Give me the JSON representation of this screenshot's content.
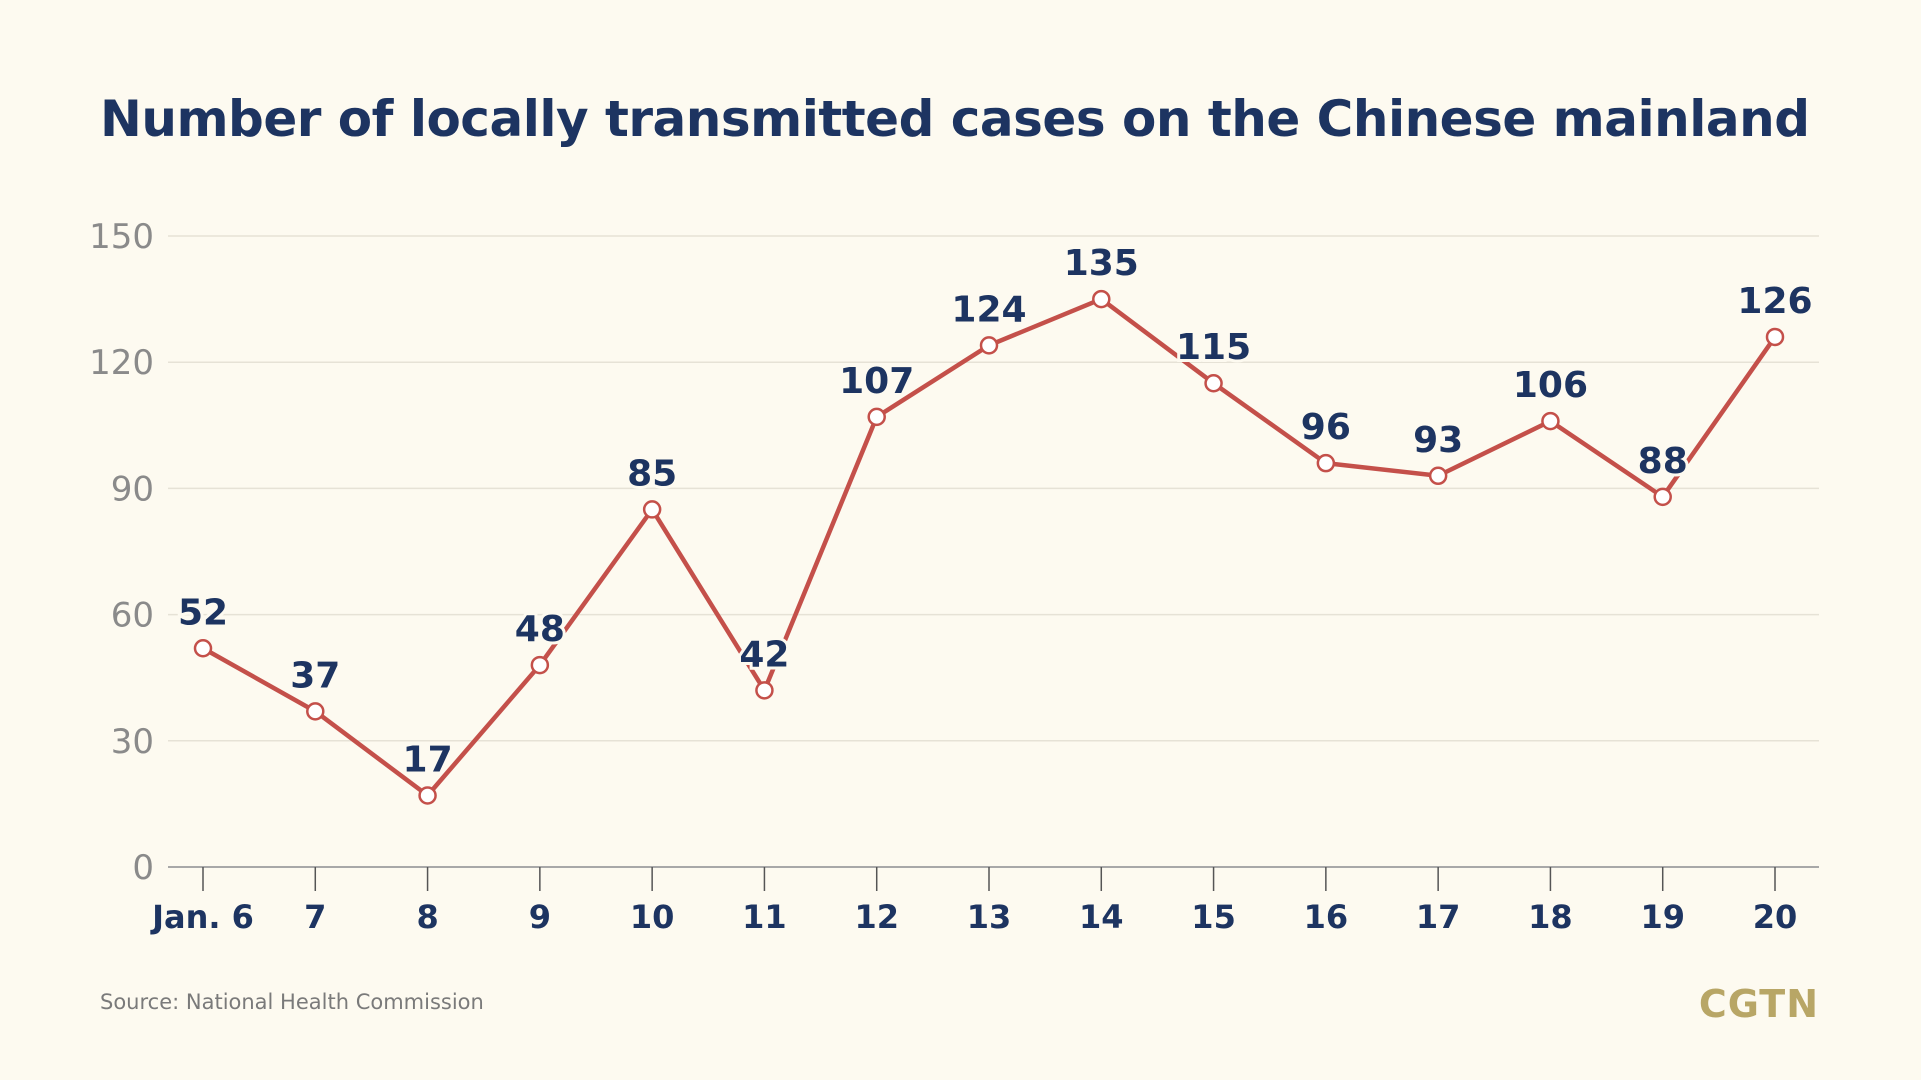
{
  "chart_data": {
    "type": "line",
    "title": "Number of locally transmitted cases on the Chinese mainland",
    "categories": [
      "Jan. 6",
      "7",
      "8",
      "9",
      "10",
      "11",
      "12",
      "13",
      "14",
      "15",
      "16",
      "17",
      "18",
      "19",
      "20"
    ],
    "series": [
      {
        "values": [
          52,
          37,
          17,
          48,
          85,
          42,
          107,
          124,
          135,
          115,
          96,
          93,
          106,
          88,
          126
        ]
      }
    ],
    "ylim": [
      0,
      150
    ],
    "yticks": [
      0,
      30,
      60,
      90,
      120,
      150
    ],
    "grid": true,
    "colors": {
      "line": "#c4504a",
      "labels": "#1d3461",
      "grid": "#e6e2d6",
      "ticks": "#8a8a8a"
    }
  },
  "source": "Source: National Health Commission",
  "logo": "CGTN"
}
